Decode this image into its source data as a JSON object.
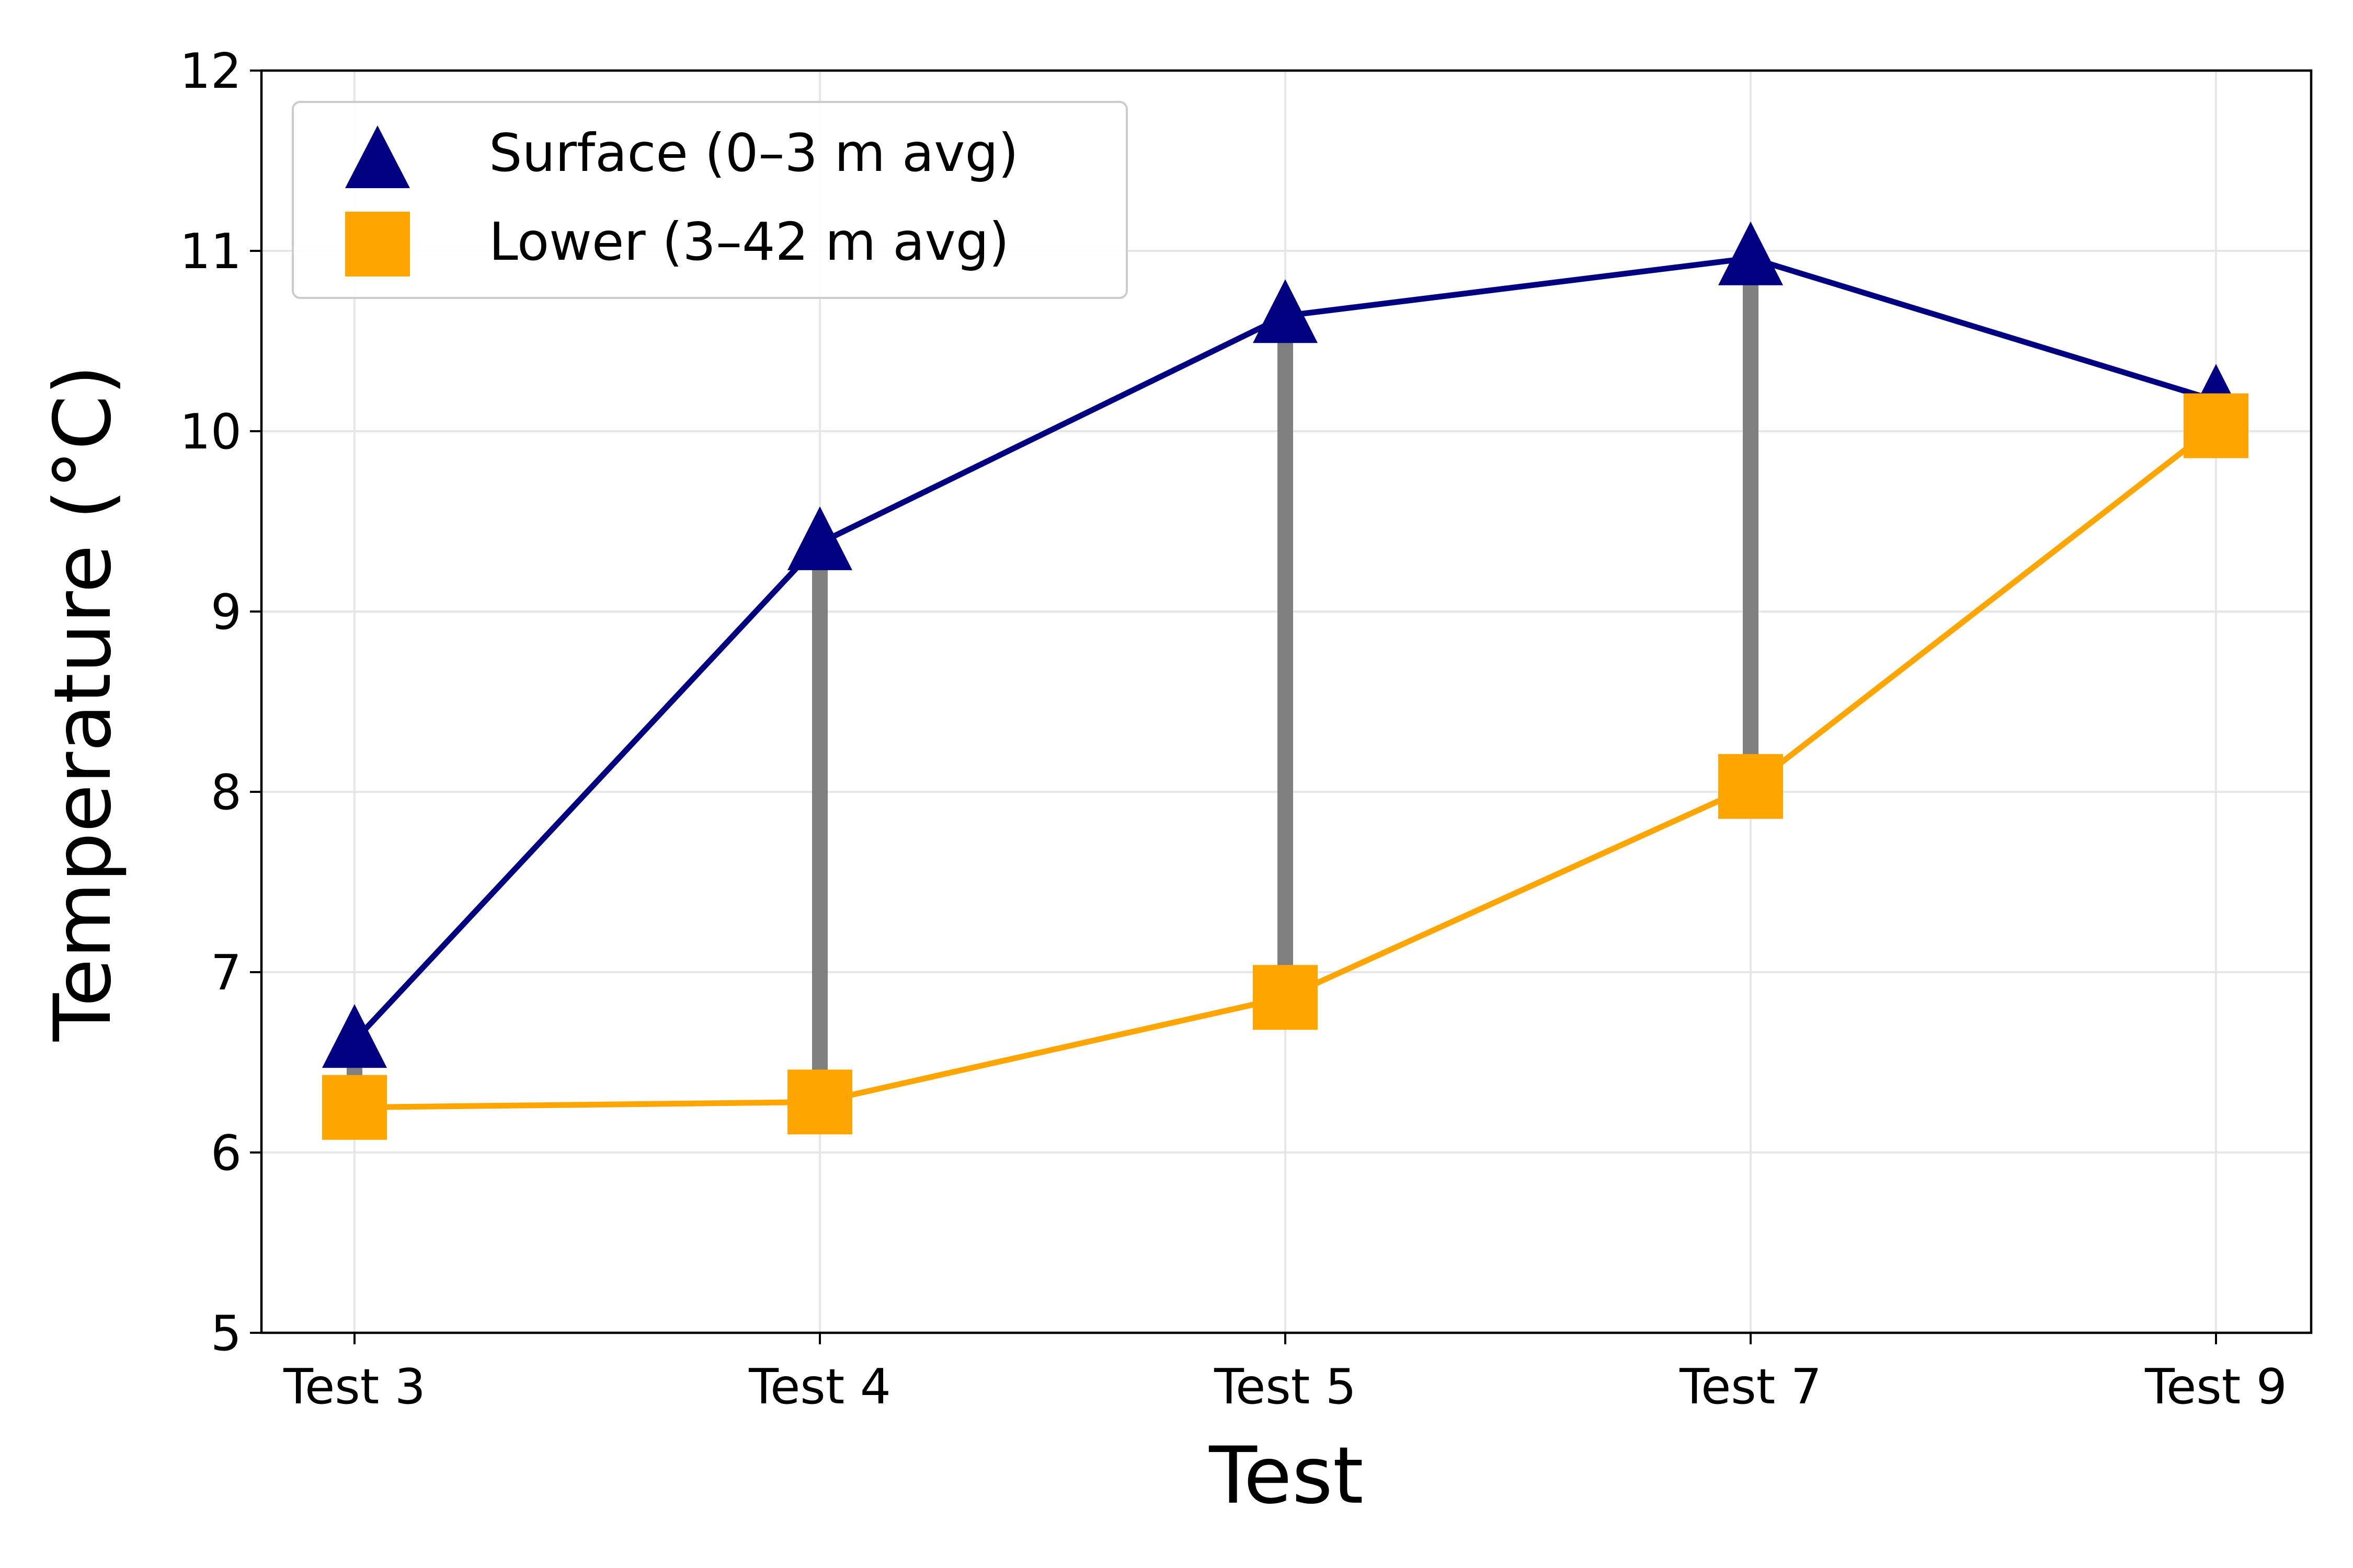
{
  "chart_data": {
    "type": "line",
    "title": "",
    "xlabel": "Test",
    "ylabel": "Temperature (°C)",
    "categories": [
      "Test 3",
      "Test 4",
      "Test 5",
      "Test 7",
      "Test 9"
    ],
    "ylim": [
      5,
      12
    ],
    "yticks": [
      "5",
      "6",
      "7",
      "8",
      "9",
      "10",
      "11",
      "12"
    ],
    "grid": true,
    "legend_position": "top-left",
    "series": [
      {
        "name": "Surface (0–3 m avg)",
        "marker": "triangle",
        "color": "#000080",
        "values": [
          6.62,
          9.38,
          10.64,
          10.96,
          10.17
        ]
      },
      {
        "name": "Lower (3–42 m avg)",
        "marker": "square",
        "color": "#FFA500",
        "values": [
          6.25,
          6.28,
          6.86,
          8.03,
          10.03
        ]
      }
    ],
    "difference_connector_color": "#808080"
  }
}
